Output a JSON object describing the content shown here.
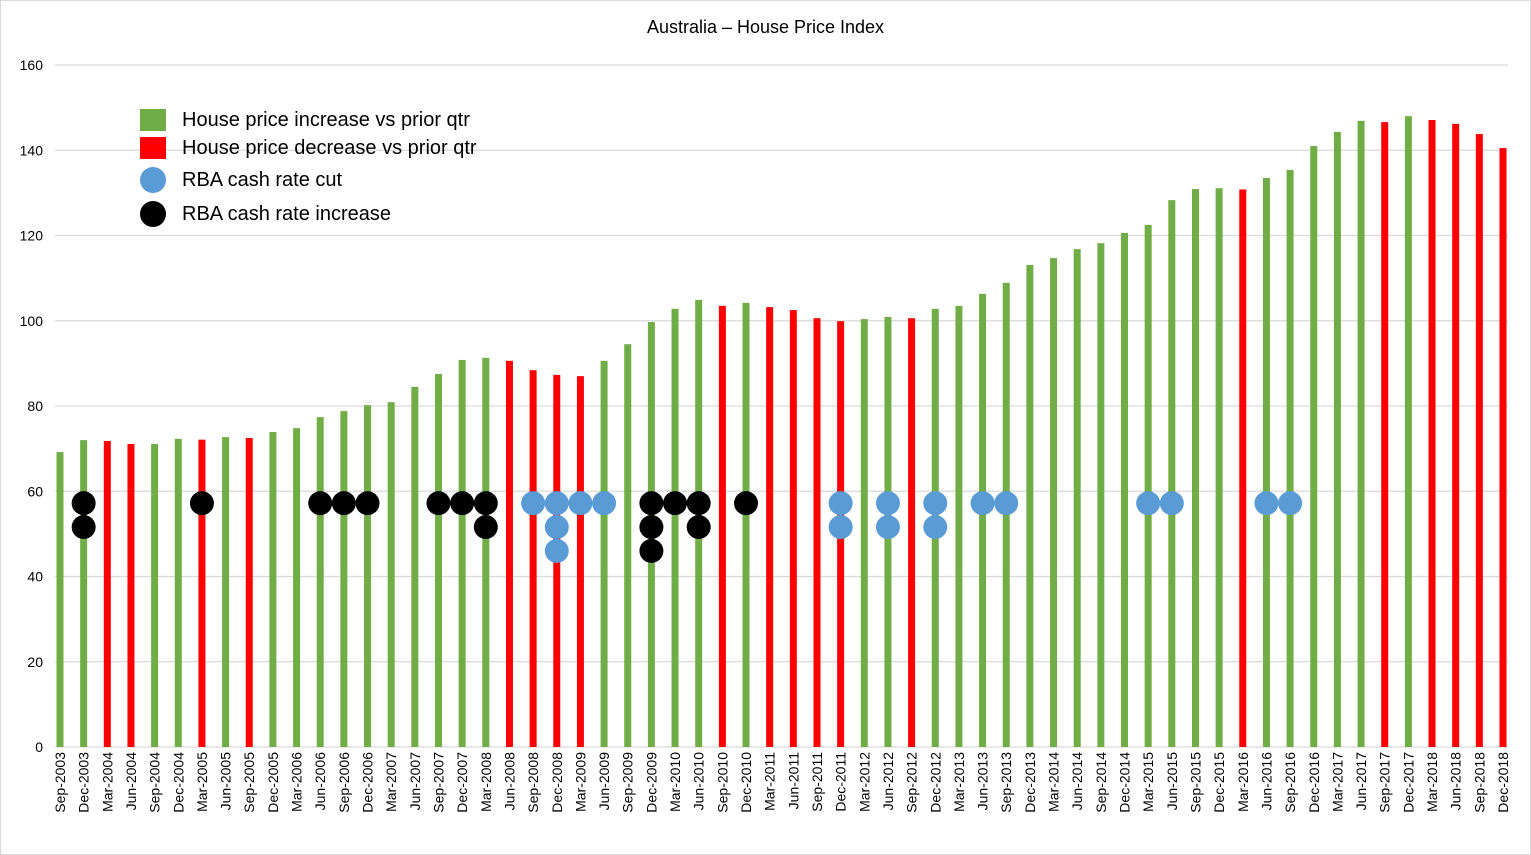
{
  "chart_data": {
    "type": "bar",
    "title": "Australia – House Price Index",
    "xlabel": "",
    "ylabel": "",
    "ylim": [
      0,
      160
    ],
    "yticks": [
      0,
      20,
      40,
      60,
      80,
      100,
      120,
      140,
      160
    ],
    "grid": true,
    "legend_placement": "top-left",
    "colors": {
      "increase": "#70AD47",
      "decrease": "#FF0000",
      "cut": "#5B9BD5",
      "rate_increase": "#000000"
    },
    "legend": [
      {
        "label": "House price increase vs prior qtr",
        "marker": "square",
        "color": "#70AD47"
      },
      {
        "label": "House price decrease vs prior qtr",
        "marker": "square",
        "color": "#FF0000"
      },
      {
        "label": "RBA cash rate cut",
        "marker": "circle",
        "color": "#5B9BD5"
      },
      {
        "label": "RBA cash rate increase",
        "marker": "circle",
        "color": "#000000"
      }
    ],
    "categories": [
      "Sep-2003",
      "Dec-2003",
      "Mar-2004",
      "Jun-2004",
      "Sep-2004",
      "Dec-2004",
      "Mar-2005",
      "Jun-2005",
      "Sep-2005",
      "Dec-2005",
      "Mar-2006",
      "Jun-2006",
      "Sep-2006",
      "Dec-2006",
      "Mar-2007",
      "Jun-2007",
      "Sep-2007",
      "Dec-2007",
      "Mar-2008",
      "Jun-2008",
      "Sep-2008",
      "Dec-2008",
      "Mar-2009",
      "Jun-2009",
      "Sep-2009",
      "Dec-2009",
      "Mar-2010",
      "Jun-2010",
      "Sep-2010",
      "Dec-2010",
      "Mar-2011",
      "Jun-2011",
      "Sep-2011",
      "Dec-2011",
      "Mar-2012",
      "Jun-2012",
      "Sep-2012",
      "Dec-2012",
      "Mar-2013",
      "Jun-2013",
      "Sep-2013",
      "Dec-2013",
      "Mar-2014",
      "Jun-2014",
      "Sep-2014",
      "Dec-2014",
      "Mar-2015",
      "Jun-2015",
      "Sep-2015",
      "Dec-2015",
      "Mar-2016",
      "Jun-2016",
      "Sep-2016",
      "Dec-2016",
      "Mar-2017",
      "Jun-2017",
      "Sep-2017",
      "Dec-2017",
      "Mar-2018",
      "Jun-2018",
      "Sep-2018",
      "Dec-2018"
    ],
    "values": [
      69.2,
      72.0,
      71.8,
      71.1,
      71.1,
      72.3,
      72.1,
      72.7,
      72.5,
      73.9,
      74.8,
      77.4,
      78.8,
      80.2,
      80.9,
      84.5,
      87.5,
      90.8,
      91.3,
      90.6,
      88.4,
      87.3,
      87.0,
      90.6,
      94.5,
      99.7,
      102.8,
      104.9,
      103.5,
      104.2,
      103.2,
      102.5,
      100.6,
      99.9,
      100.4,
      100.9,
      100.6,
      102.8,
      103.5,
      106.3,
      108.9,
      113.1,
      114.7,
      116.8,
      118.2,
      120.6,
      122.5,
      128.3,
      130.9,
      131.1,
      130.8,
      133.5,
      135.4,
      141.0,
      144.3,
      146.9,
      146.6,
      148.0,
      147.1,
      146.2,
      143.8,
      140.5
    ],
    "rba_marker_levels": [
      57.2,
      51.6,
      46.0
    ],
    "rba_cuts": {
      "Sep-2008": 1,
      "Dec-2008": 3,
      "Mar-2009": 1,
      "Jun-2009": 1,
      "Dec-2011": 2,
      "Jun-2012": 2,
      "Dec-2012": 2,
      "Jun-2013": 1,
      "Sep-2013": 1,
      "Mar-2015": 1,
      "Jun-2015": 1,
      "Jun-2016": 1,
      "Sep-2016": 1
    },
    "rba_increases": {
      "Dec-2003": 2,
      "Mar-2005": 1,
      "Jun-2006": 1,
      "Sep-2006": 1,
      "Dec-2006": 1,
      "Sep-2007": 1,
      "Dec-2007": 1,
      "Mar-2008": 2,
      "Dec-2009": 3,
      "Mar-2010": 1,
      "Jun-2010": 2,
      "Dec-2010": 1
    }
  }
}
